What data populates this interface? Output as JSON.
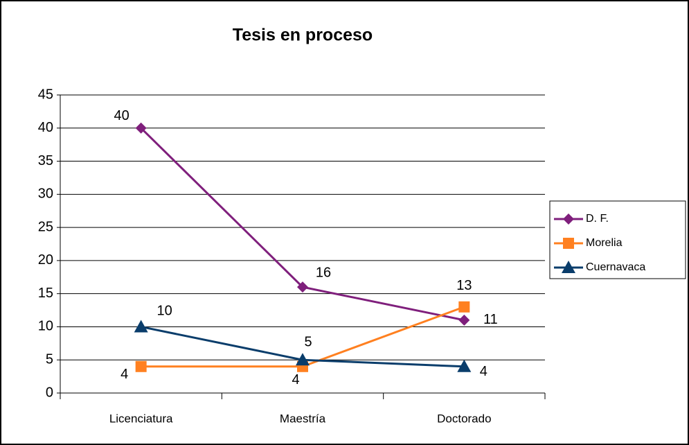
{
  "chart_data": {
    "type": "line",
    "title": "Tesis en proceso",
    "categories": [
      "Licenciatura",
      "Maestría",
      "Doctorado"
    ],
    "series": [
      {
        "name": "D. F.",
        "color": "#7f1f7c",
        "marker": "diamond",
        "values": [
          40,
          16,
          11
        ]
      },
      {
        "name": "Morelia",
        "color": "#ff8020",
        "marker": "square",
        "values": [
          4,
          4,
          13
        ]
      },
      {
        "name": "Cuernavaca",
        "color": "#0a3d6b",
        "marker": "triangle",
        "values": [
          10,
          5,
          4
        ]
      }
    ],
    "ylim": [
      0,
      45
    ],
    "yticks": [
      0,
      5,
      10,
      15,
      20,
      25,
      30,
      35,
      40,
      45
    ],
    "grid": true,
    "legend": "right"
  }
}
